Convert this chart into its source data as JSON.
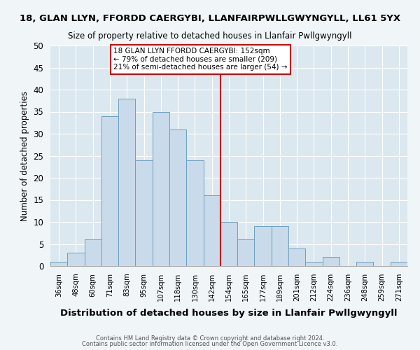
{
  "title1": "18, GLAN LLYN, FFORDD CAERGYBI, LLANFAIRPWLLGWYNGYLL, LL61 5YX",
  "title2": "Size of property relative to detached houses in Llanfair Pwllgwyngyll",
  "xlabel": "Distribution of detached houses by size in Llanfair Pwllgwyngyll",
  "ylabel": "Number of detached properties",
  "footer1": "Contains HM Land Registry data © Crown copyright and database right 2024.",
  "footer2": "Contains public sector information licensed under the Open Government Licence v3.0.",
  "bar_labels": [
    "36sqm",
    "48sqm",
    "60sqm",
    "71sqm",
    "83sqm",
    "95sqm",
    "107sqm",
    "118sqm",
    "130sqm",
    "142sqm",
    "154sqm",
    "165sqm",
    "177sqm",
    "189sqm",
    "201sqm",
    "212sqm",
    "224sqm",
    "236sqm",
    "248sqm",
    "259sqm",
    "271sqm"
  ],
  "bar_values": [
    1,
    3,
    6,
    34,
    38,
    24,
    35,
    31,
    24,
    16,
    10,
    6,
    9,
    9,
    4,
    1,
    2,
    0,
    1,
    0,
    1
  ],
  "bar_color": "#c9daea",
  "bar_edgecolor": "#6e9fbe",
  "plot_bg_color": "#dce8f0",
  "fig_bg_color": "#f0f5f8",
  "grid_color": "#ffffff",
  "vline_x_idx": 10,
  "vline_color": "#cc0000",
  "annotation_title": "18 GLAN LLYN FFORDD CAERGYBI: 152sqm",
  "annotation_line1": "← 79% of detached houses are smaller (209)",
  "annotation_line2": "21% of semi-detached houses are larger (54) →",
  "annotation_box_edgecolor": "#cc0000",
  "ylim": [
    0,
    50
  ],
  "yticks": [
    0,
    5,
    10,
    15,
    20,
    25,
    30,
    35,
    40,
    45,
    50
  ]
}
